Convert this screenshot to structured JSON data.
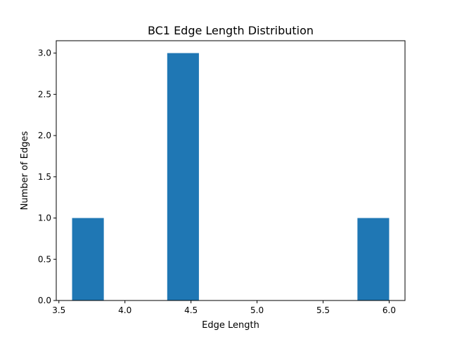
{
  "chart_data": {
    "type": "bar",
    "title": "BC1 Edge Length Distribution",
    "xlabel": "Edge Length",
    "ylabel": "Number of Edges",
    "bins": [
      {
        "start": 3.6,
        "end": 3.84,
        "count": 1
      },
      {
        "start": 3.84,
        "end": 4.08,
        "count": 0
      },
      {
        "start": 4.08,
        "end": 4.32,
        "count": 0
      },
      {
        "start": 4.32,
        "end": 4.56,
        "count": 3
      },
      {
        "start": 4.56,
        "end": 4.8,
        "count": 0
      },
      {
        "start": 4.8,
        "end": 5.04,
        "count": 0
      },
      {
        "start": 5.04,
        "end": 5.28,
        "count": 0
      },
      {
        "start": 5.28,
        "end": 5.52,
        "count": 0
      },
      {
        "start": 5.52,
        "end": 5.76,
        "count": 0
      },
      {
        "start": 5.76,
        "end": 6.0,
        "count": 1
      }
    ],
    "xlim": [
      3.48,
      6.12
    ],
    "ylim": [
      0,
      3.15
    ],
    "xticks": [
      3.5,
      4.0,
      4.5,
      5.0,
      5.5,
      6.0
    ],
    "xtick_labels": [
      "3.5",
      "4.0",
      "4.5",
      "5.0",
      "5.5",
      "6.0"
    ],
    "yticks": [
      0,
      0.5,
      1.0,
      1.5,
      2.0,
      2.5,
      3.0
    ],
    "ytick_labels": [
      "0.0",
      "0.5",
      "1.0",
      "1.5",
      "2.0",
      "2.5",
      "3.0"
    ],
    "grid": false,
    "bar_color": "#1f77b4"
  }
}
